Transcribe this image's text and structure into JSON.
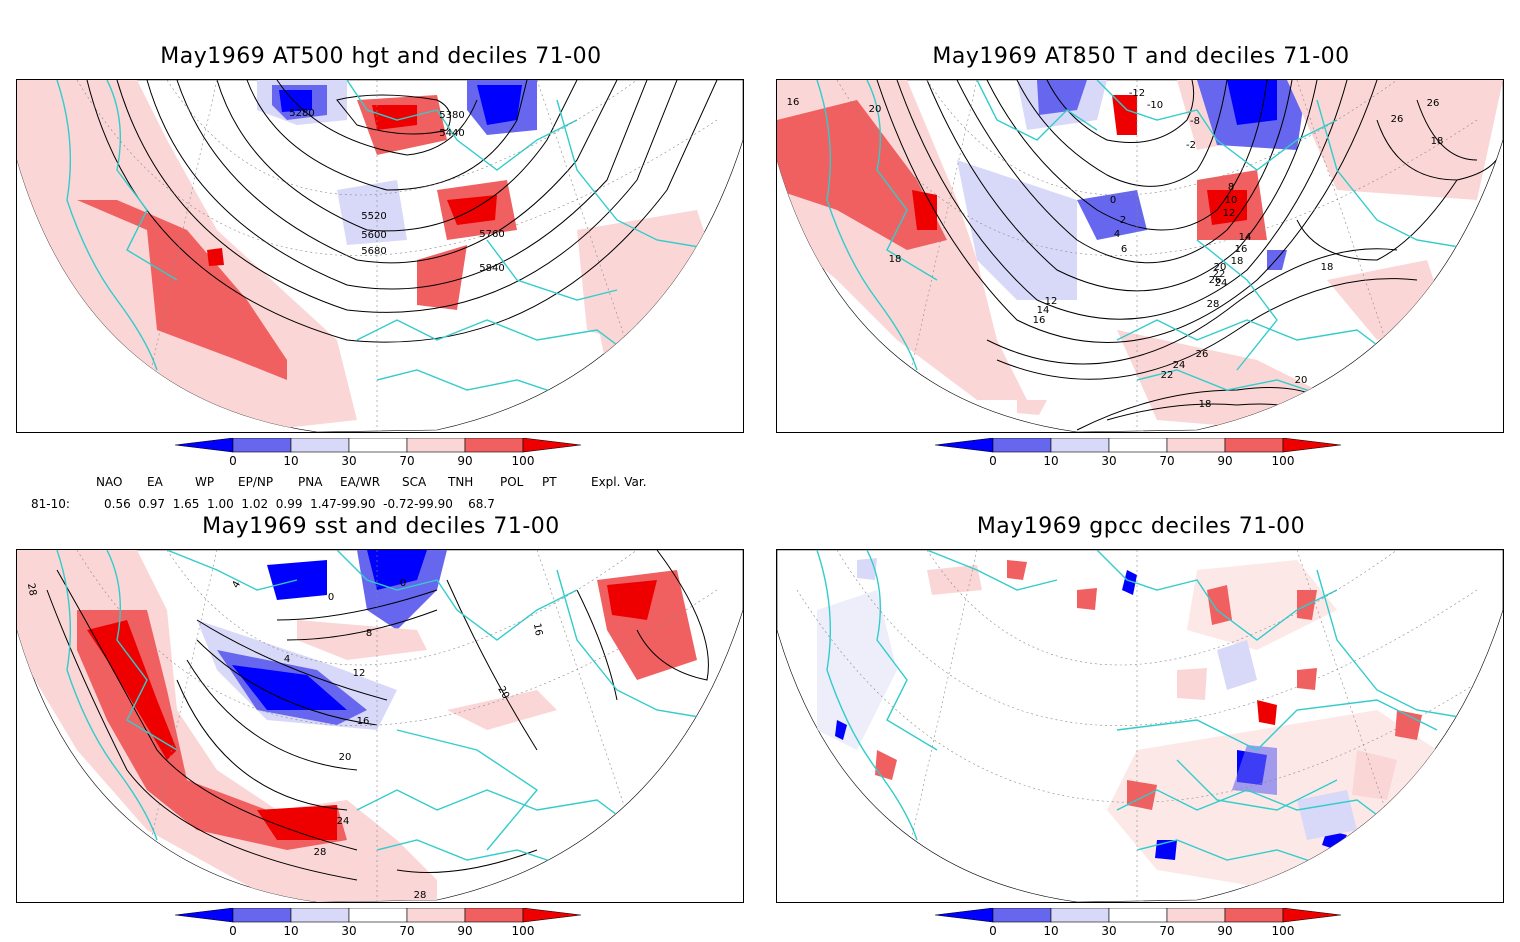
{
  "panels": [
    {
      "id": "hgt",
      "title": "May1969 AT500 hgt and deciles 71-00",
      "contour_labels": [
        "5280",
        "5380",
        "5440",
        "5520",
        "5600",
        "5680",
        "5760",
        "5840"
      ]
    },
    {
      "id": "t850",
      "title": "May1969 AT850 T and deciles 71-00",
      "contour_labels": [
        "16",
        "20",
        "-12",
        "-10",
        "-8",
        "-2",
        "0",
        "2",
        "4",
        "6",
        "8",
        "10",
        "12",
        "14",
        "16",
        "18",
        "18",
        "20",
        "22",
        "24",
        "26",
        "26",
        "26",
        "18",
        "28",
        "26",
        "24",
        "22",
        "20",
        "18",
        "18",
        "12",
        "14",
        "16"
      ]
    },
    {
      "id": "sst",
      "title": "May1969 sst and deciles 71-00",
      "contour_labels": [
        "28",
        "0",
        "4",
        "8",
        "12",
        "16",
        "20",
        "24",
        "28",
        "28",
        "16",
        "20",
        "0",
        "4"
      ]
    },
    {
      "id": "gpcc",
      "title": "May1969 gpcc deciles 71-00",
      "contour_labels": []
    }
  ],
  "colorbar": {
    "ticks": [
      "0",
      "10",
      "30",
      "70",
      "90",
      "100"
    ],
    "colors": [
      "#0000ff",
      "#6666ee",
      "#d8d8f8",
      "#ffffff",
      "#fbd6d6",
      "#f06060",
      "#ee0000"
    ]
  },
  "indices": {
    "row_label": "81-10:",
    "names": [
      "NAO",
      "EA",
      "WP",
      "EP/NP",
      "PNA",
      "EA/WR",
      "SCA",
      "TNH",
      "POL",
      "PT",
      "Expl. Var."
    ],
    "values_line": "0.56  0.97  1.65  1.00  1.02  0.99  1.47-99.90  -0.72-99.90    68.7"
  },
  "map_colors": {
    "coast": "#33cccc",
    "contour": "#000000",
    "grid": "#888888"
  }
}
